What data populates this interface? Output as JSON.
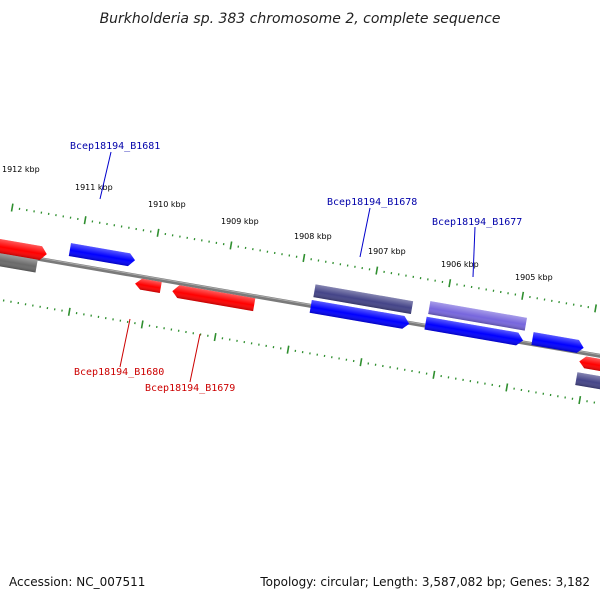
{
  "title": "Burkholderia sp. 383 chromosome 2, complete sequence",
  "footer": {
    "accession": "Accession: NC_007511",
    "summary": "Topology: circular; Length: 3,587,082 bp; Genes: 3,182"
  },
  "colors": {
    "backbone": "#808080",
    "tick": "#2f8f2f",
    "forward_gene": "#0000ff",
    "reverse_gene": "#ff0000",
    "dark_gene": "#444488",
    "light_gene": "#7766dd",
    "gray_gene": "#777777",
    "label_blue": "#0000aa",
    "label_red": "#cc0000"
  },
  "ticks": [
    "1912 kbp",
    "1911 kbp",
    "1910 kbp",
    "1909 kbp",
    "1908 kbp",
    "1907 kbp",
    "1906 kbp",
    "1905 kbp"
  ],
  "gene_labels": {
    "b1681": "Bcep18194_B1681",
    "b1678": "Bcep18194_B1678",
    "b1677": "Bcep18194_B1677",
    "b1680": "Bcep18194_B1680",
    "b1679": "Bcep18194_B1679"
  }
}
